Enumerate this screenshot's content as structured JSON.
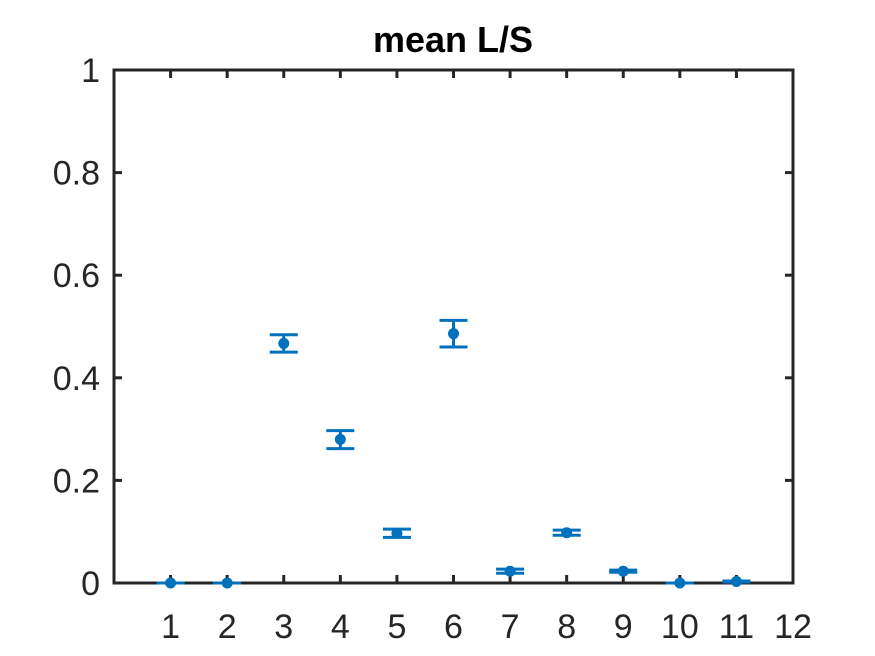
{
  "chart_data": {
    "type": "scatter",
    "title": "mean L/S",
    "xlabel": "",
    "ylabel": "",
    "xlim": [
      0,
      12
    ],
    "ylim": [
      0,
      1
    ],
    "xticks": [
      1,
      2,
      3,
      4,
      5,
      6,
      7,
      8,
      9,
      10,
      11,
      12
    ],
    "yticks": [
      0,
      0.2,
      0.4,
      0.6,
      0.8,
      1
    ],
    "ytick_labels": [
      "0",
      "0.2",
      "0.4",
      "0.6",
      "0.8",
      "1"
    ],
    "grid": false,
    "legend": "none",
    "series": [
      {
        "color": "#0072BD",
        "marker": "dot",
        "error_bars": true,
        "points": [
          {
            "x": 1,
            "y": 0.0,
            "lo": 0.0,
            "hi": 0.0
          },
          {
            "x": 2,
            "y": 0.0,
            "lo": 0.0,
            "hi": 0.0
          },
          {
            "x": 3,
            "y": 0.467,
            "lo": 0.45,
            "hi": 0.484
          },
          {
            "x": 4,
            "y": 0.28,
            "lo": 0.262,
            "hi": 0.297
          },
          {
            "x": 5,
            "y": 0.097,
            "lo": 0.089,
            "hi": 0.105
          },
          {
            "x": 6,
            "y": 0.486,
            "lo": 0.46,
            "hi": 0.512
          },
          {
            "x": 7,
            "y": 0.023,
            "lo": 0.019,
            "hi": 0.027
          },
          {
            "x": 8,
            "y": 0.098,
            "lo": 0.093,
            "hi": 0.103
          },
          {
            "x": 9,
            "y": 0.023,
            "lo": 0.021,
            "hi": 0.025
          },
          {
            "x": 10,
            "y": 0.0,
            "lo": 0.0,
            "hi": 0.0
          },
          {
            "x": 11,
            "y": 0.003,
            "lo": 0.002,
            "hi": 0.004
          }
        ]
      }
    ]
  }
}
